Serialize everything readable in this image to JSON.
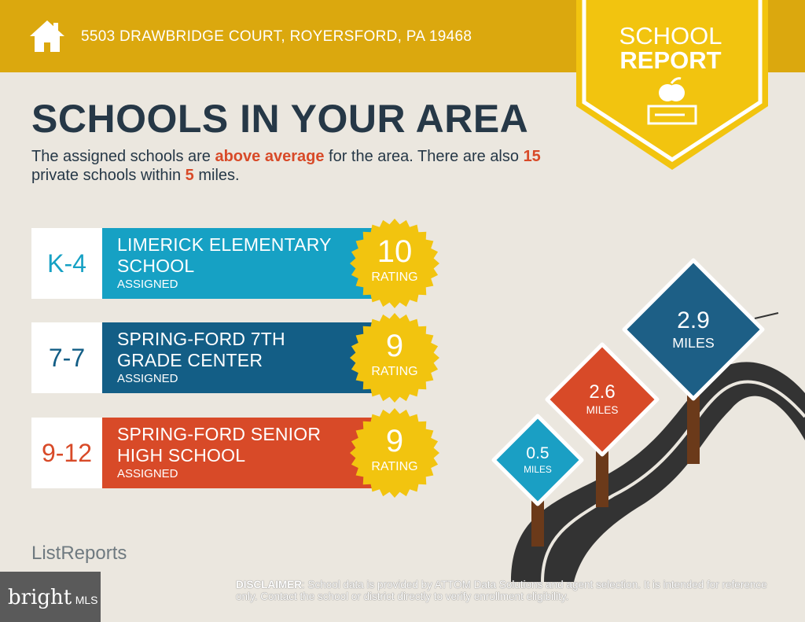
{
  "header": {
    "address": "5503 DRAWBRIDGE COURT, ROYERSFORD, PA 19468",
    "icon": "home-icon"
  },
  "badge": {
    "line1": "SCHOOL",
    "line2": "REPORT",
    "icon": "apple-books-icon"
  },
  "title": "SCHOOLS IN YOUR AREA",
  "description": {
    "p1": "The assigned schools are ",
    "hl1": "above average",
    "p2": " for the area. There are also ",
    "hl2": "15",
    "p3": " private schools within ",
    "hl3": "5",
    "p4": " miles."
  },
  "schools": [
    {
      "grade": "K-4",
      "name_l1": "LIMERICK ELEMENTARY",
      "name_l2": "SCHOOL",
      "status": "ASSIGNED",
      "rating": "10",
      "rating_label": "RATING",
      "color": "#16a1c4"
    },
    {
      "grade": "7-7",
      "name_l1": "SPRING-FORD 7TH",
      "name_l2": "GRADE CENTER",
      "status": "ASSIGNED",
      "rating": "9",
      "rating_label": "RATING",
      "color": "#135e86"
    },
    {
      "grade": "9-12",
      "name_l1": "SPRING-FORD SENIOR",
      "name_l2": "HIGH SCHOOL",
      "status": "ASSIGNED",
      "rating": "9",
      "rating_label": "RATING",
      "color": "#d84a28"
    }
  ],
  "signs": [
    {
      "value": "0.5",
      "unit": "MILES",
      "color": "#1a9fc4"
    },
    {
      "value": "2.6",
      "unit": "MILES",
      "color": "#d84a28"
    },
    {
      "value": "2.9",
      "unit": "MILES",
      "color": "#1d5f86"
    }
  ],
  "footer": {
    "disclaimer_label": "DISCLAIMER",
    "disclaimer": ": School data is provided by ATTOM Data Solutions and agent selection. It is intended for reference only. Contact the school or district directly to verify enrollment eligibility.",
    "logo": "ListReports",
    "mls_a": "bright",
    "mls_b": "MLS"
  }
}
